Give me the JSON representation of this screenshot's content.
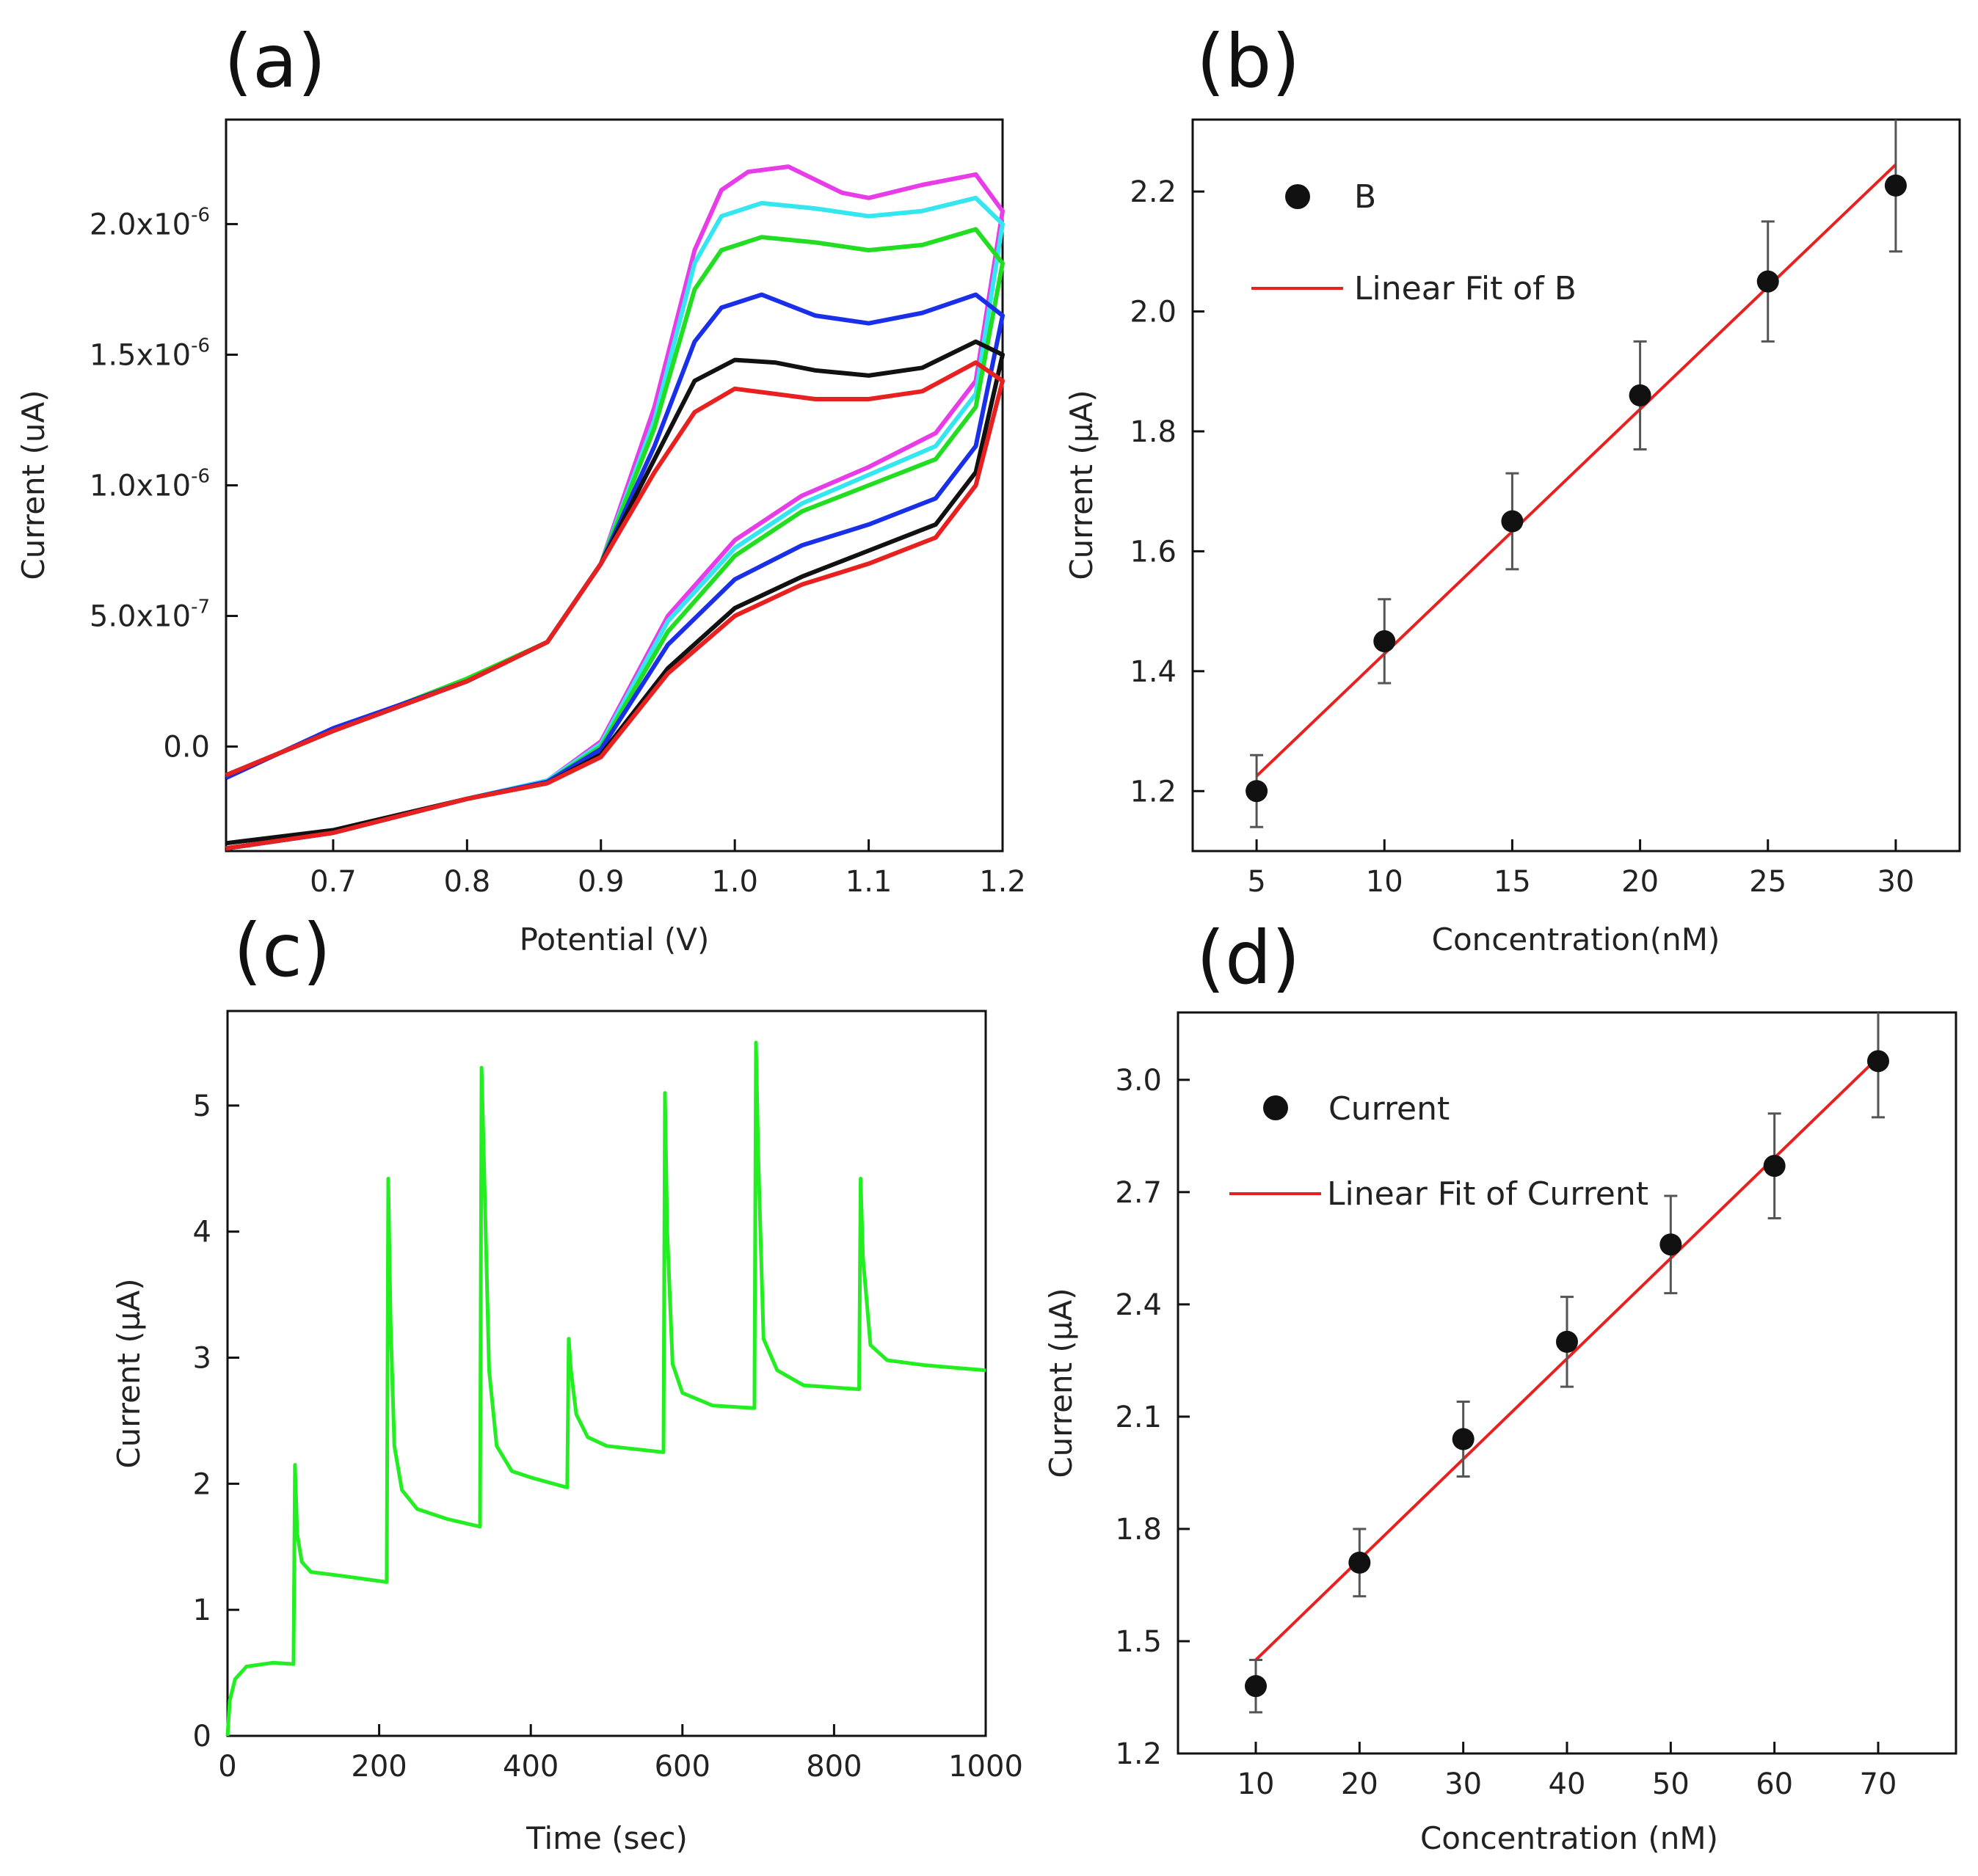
{
  "chart_data": [
    {
      "panel": "(a)",
      "type": "line",
      "xlabel": "Potential (V)",
      "ylabel": "Current (uA)",
      "xlim": [
        0.62,
        1.2
      ],
      "ylim": [
        -4e-07,
        2.4e-06
      ],
      "xticks": [
        0.7,
        0.8,
        0.9,
        1.0,
        1.1,
        1.2
      ],
      "xtick_labels": [
        "0.7",
        "0.8",
        "0.9",
        "1.0",
        "1.1",
        "1.2"
      ],
      "yticks": [
        0,
        5e-07,
        1e-06,
        1.5e-06,
        2e-06
      ],
      "ytick_labels": [
        "0.0",
        "5.0x10",
        "1.0x10",
        "1.5x10",
        "2.0x10"
      ],
      "ytick_exponents": [
        "",
        "-7",
        "-6",
        "-6",
        "-6"
      ],
      "series": [
        {
          "name": "magenta",
          "color": "#e83ce8",
          "forward": [
            [
              0.62,
              -1.1e-07
            ],
            [
              0.7,
              6e-08
            ],
            [
              0.8,
              2.5e-07
            ],
            [
              0.86,
              4e-07
            ],
            [
              0.9,
              7e-07
            ],
            [
              0.94,
              1.3e-06
            ],
            [
              0.97,
              1.9e-06
            ],
            [
              0.99,
              2.13e-06
            ],
            [
              1.01,
              2.2e-06
            ],
            [
              1.04,
              2.22e-06
            ],
            [
              1.08,
              2.12e-06
            ],
            [
              1.1,
              2.1e-06
            ],
            [
              1.14,
              2.15e-06
            ],
            [
              1.18,
              2.19e-06
            ],
            [
              1.2,
              2.05e-06
            ]
          ],
          "reverse": [
            [
              1.2,
              2.05e-06
            ],
            [
              1.18,
              1.4e-06
            ],
            [
              1.15,
              1.2e-06
            ],
            [
              1.1,
              1.07e-06
            ],
            [
              1.05,
              9.6e-07
            ],
            [
              1.0,
              7.9e-07
            ],
            [
              0.95,
              5e-07
            ],
            [
              0.9,
              2e-08
            ],
            [
              0.86,
              -1.3e-07
            ],
            [
              0.8,
              -2e-07
            ],
            [
              0.7,
              -3.3e-07
            ],
            [
              0.62,
              -3.9e-07
            ]
          ]
        },
        {
          "name": "cyan",
          "color": "#33e6f0",
          "forward": [
            [
              0.62,
              -1.1e-07
            ],
            [
              0.7,
              6e-08
            ],
            [
              0.8,
              2.5e-07
            ],
            [
              0.86,
              4e-07
            ],
            [
              0.9,
              7e-07
            ],
            [
              0.94,
              1.25e-06
            ],
            [
              0.97,
              1.85e-06
            ],
            [
              0.99,
              2.03e-06
            ],
            [
              1.02,
              2.08e-06
            ],
            [
              1.06,
              2.06e-06
            ],
            [
              1.1,
              2.03e-06
            ],
            [
              1.14,
              2.05e-06
            ],
            [
              1.18,
              2.1e-06
            ],
            [
              1.2,
              2e-06
            ]
          ],
          "reverse": [
            [
              1.2,
              2e-06
            ],
            [
              1.18,
              1.35e-06
            ],
            [
              1.15,
              1.15e-06
            ],
            [
              1.1,
              1.04e-06
            ],
            [
              1.05,
              9.3e-07
            ],
            [
              1.0,
              7.6e-07
            ],
            [
              0.95,
              4.8e-07
            ],
            [
              0.9,
              1e-08
            ],
            [
              0.86,
              -1.3e-07
            ],
            [
              0.8,
              -2e-07
            ],
            [
              0.7,
              -3.3e-07
            ],
            [
              0.62,
              -3.9e-07
            ]
          ]
        },
        {
          "name": "green",
          "color": "#22dd22",
          "forward": [
            [
              0.62,
              -1.1e-07
            ],
            [
              0.7,
              6e-08
            ],
            [
              0.8,
              2.6e-07
            ],
            [
              0.86,
              4e-07
            ],
            [
              0.9,
              7e-07
            ],
            [
              0.94,
              1.22e-06
            ],
            [
              0.97,
              1.75e-06
            ],
            [
              0.99,
              1.9e-06
            ],
            [
              1.02,
              1.95e-06
            ],
            [
              1.06,
              1.93e-06
            ],
            [
              1.1,
              1.9e-06
            ],
            [
              1.14,
              1.92e-06
            ],
            [
              1.18,
              1.98e-06
            ],
            [
              1.2,
              1.85e-06
            ]
          ],
          "reverse": [
            [
              1.2,
              1.85e-06
            ],
            [
              1.18,
              1.3e-06
            ],
            [
              1.15,
              1.1e-06
            ],
            [
              1.1,
              1e-06
            ],
            [
              1.05,
              9e-07
            ],
            [
              1.0,
              7.3e-07
            ],
            [
              0.95,
              4.4e-07
            ],
            [
              0.9,
              0
            ],
            [
              0.86,
              -1.35e-07
            ],
            [
              0.8,
              -2e-07
            ],
            [
              0.7,
              -3.3e-07
            ],
            [
              0.62,
              -3.9e-07
            ]
          ]
        },
        {
          "name": "blue",
          "color": "#1a30e8",
          "forward": [
            [
              0.62,
              -1.2e-07
            ],
            [
              0.7,
              7e-08
            ],
            [
              0.8,
              2.5e-07
            ],
            [
              0.86,
              4e-07
            ],
            [
              0.9,
              7e-07
            ],
            [
              0.94,
              1.15e-06
            ],
            [
              0.97,
              1.55e-06
            ],
            [
              0.99,
              1.68e-06
            ],
            [
              1.02,
              1.73e-06
            ],
            [
              1.06,
              1.65e-06
            ],
            [
              1.1,
              1.62e-06
            ],
            [
              1.14,
              1.66e-06
            ],
            [
              1.18,
              1.73e-06
            ],
            [
              1.2,
              1.65e-06
            ]
          ],
          "reverse": [
            [
              1.2,
              1.65e-06
            ],
            [
              1.18,
              1.15e-06
            ],
            [
              1.15,
              9.5e-07
            ],
            [
              1.1,
              8.5e-07
            ],
            [
              1.05,
              7.7e-07
            ],
            [
              1.0,
              6.4e-07
            ],
            [
              0.95,
              3.9e-07
            ],
            [
              0.9,
              -1e-08
            ],
            [
              0.86,
              -1.35e-07
            ],
            [
              0.8,
              -2e-07
            ],
            [
              0.7,
              -3.3e-07
            ],
            [
              0.62,
              -3.9e-07
            ]
          ]
        },
        {
          "name": "black",
          "color": "#111111",
          "forward": [
            [
              0.62,
              -1.1e-07
            ],
            [
              0.7,
              6e-08
            ],
            [
              0.8,
              2.5e-07
            ],
            [
              0.86,
              4e-07
            ],
            [
              0.9,
              7e-07
            ],
            [
              0.94,
              1.1e-06
            ],
            [
              0.97,
              1.4e-06
            ],
            [
              1.0,
              1.48e-06
            ],
            [
              1.03,
              1.47e-06
            ],
            [
              1.06,
              1.44e-06
            ],
            [
              1.1,
              1.42e-06
            ],
            [
              1.14,
              1.45e-06
            ],
            [
              1.18,
              1.55e-06
            ],
            [
              1.2,
              1.5e-06
            ]
          ],
          "reverse": [
            [
              1.2,
              1.5e-06
            ],
            [
              1.18,
              1.05e-06
            ],
            [
              1.15,
              8.5e-07
            ],
            [
              1.1,
              7.5e-07
            ],
            [
              1.05,
              6.5e-07
            ],
            [
              1.0,
              5.3e-07
            ],
            [
              0.95,
              3e-07
            ],
            [
              0.9,
              -3e-08
            ],
            [
              0.86,
              -1.4e-07
            ],
            [
              0.8,
              -2e-07
            ],
            [
              0.7,
              -3.2e-07
            ],
            [
              0.62,
              -3.7e-07
            ]
          ]
        },
        {
          "name": "red",
          "color": "#e82020",
          "forward": [
            [
              0.62,
              -1.1e-07
            ],
            [
              0.7,
              6e-08
            ],
            [
              0.8,
              2.5e-07
            ],
            [
              0.86,
              4e-07
            ],
            [
              0.9,
              7e-07
            ],
            [
              0.94,
              1.05e-06
            ],
            [
              0.97,
              1.28e-06
            ],
            [
              1.0,
              1.37e-06
            ],
            [
              1.03,
              1.35e-06
            ],
            [
              1.06,
              1.33e-06
            ],
            [
              1.1,
              1.33e-06
            ],
            [
              1.14,
              1.36e-06
            ],
            [
              1.18,
              1.47e-06
            ],
            [
              1.2,
              1.4e-06
            ]
          ],
          "reverse": [
            [
              1.2,
              1.4e-06
            ],
            [
              1.18,
              1e-06
            ],
            [
              1.15,
              8e-07
            ],
            [
              1.1,
              7e-07
            ],
            [
              1.05,
              6.2e-07
            ],
            [
              1.0,
              5e-07
            ],
            [
              0.95,
              2.8e-07
            ],
            [
              0.9,
              -4e-08
            ],
            [
              0.86,
              -1.4e-07
            ],
            [
              0.8,
              -2e-07
            ],
            [
              0.7,
              -3.3e-07
            ],
            [
              0.62,
              -3.9e-07
            ]
          ]
        }
      ]
    },
    {
      "panel": "(b)",
      "type": "scatter",
      "xlabel": "Concentration(nM)",
      "ylabel": "Current (µA)",
      "xlim": [
        2.5,
        32.5
      ],
      "ylim": [
        1.1,
        2.32
      ],
      "xticks": [
        5,
        10,
        15,
        20,
        25,
        30
      ],
      "yticks": [
        1.2,
        1.4,
        1.6,
        1.8,
        2.0,
        2.2
      ],
      "x": [
        5,
        10,
        15,
        20,
        25,
        30
      ],
      "y": [
        1.2,
        1.45,
        1.65,
        1.86,
        2.05,
        2.21
      ],
      "err": [
        0.06,
        0.07,
        0.08,
        0.09,
        0.1,
        0.11
      ],
      "fit": {
        "x": [
          5,
          30
        ],
        "y": [
          1.225,
          2.245
        ]
      },
      "legend": {
        "points": "B",
        "fit": "Linear Fit of B"
      }
    },
    {
      "panel": "(c)",
      "type": "line",
      "xlabel": "Time (sec)",
      "ylabel": "Current (µA)",
      "xlim": [
        0,
        1000
      ],
      "ylim": [
        0,
        5.75
      ],
      "xticks": [
        0,
        200,
        400,
        600,
        800,
        1000
      ],
      "yticks": [
        0,
        1,
        2,
        3,
        4,
        5
      ],
      "color": "#22ee22",
      "series": [
        {
          "name": "amperometric response",
          "points": [
            [
              0,
              0
            ],
            [
              3,
              0.28
            ],
            [
              10,
              0.45
            ],
            [
              25,
              0.55
            ],
            [
              60,
              0.58
            ],
            [
              87,
              0.57
            ],
            [
              89,
              2.15
            ],
            [
              92,
              1.6
            ],
            [
              98,
              1.38
            ],
            [
              110,
              1.3
            ],
            [
              150,
              1.27
            ],
            [
              210,
              1.22
            ],
            [
              212,
              4.42
            ],
            [
              215,
              3.3
            ],
            [
              220,
              2.3
            ],
            [
              230,
              1.95
            ],
            [
              250,
              1.8
            ],
            [
              290,
              1.72
            ],
            [
              333,
              1.66
            ],
            [
              335,
              5.3
            ],
            [
              338,
              4.6
            ],
            [
              345,
              2.9
            ],
            [
              355,
              2.3
            ],
            [
              375,
              2.1
            ],
            [
              400,
              2.05
            ],
            [
              448,
              1.97
            ],
            [
              450,
              3.15
            ],
            [
              453,
              2.9
            ],
            [
              460,
              2.55
            ],
            [
              475,
              2.37
            ],
            [
              500,
              2.3
            ],
            [
              575,
              2.25
            ],
            [
              577,
              5.1
            ],
            [
              580,
              4
            ],
            [
              587,
              2.95
            ],
            [
              600,
              2.72
            ],
            [
              640,
              2.62
            ],
            [
              695,
              2.6
            ],
            [
              697,
              5.5
            ],
            [
              700,
              4.6
            ],
            [
              707,
              3.15
            ],
            [
              725,
              2.9
            ],
            [
              760,
              2.78
            ],
            [
              833,
              2.75
            ],
            [
              835,
              4.42
            ],
            [
              838,
              3.8
            ],
            [
              848,
              3.1
            ],
            [
              870,
              2.98
            ],
            [
              920,
              2.94
            ],
            [
              1000,
              2.9
            ]
          ]
        }
      ]
    },
    {
      "panel": "(d)",
      "type": "scatter",
      "xlabel": "Concentration (nM)",
      "ylabel": "Current (µA)",
      "xlim": [
        2.5,
        77.5
      ],
      "ylim": [
        1.2,
        3.18
      ],
      "xticks": [
        10,
        20,
        30,
        40,
        50,
        60,
        70
      ],
      "yticks": [
        1.2,
        1.5,
        1.8,
        2.1,
        2.4,
        2.7,
        3.0
      ],
      "x": [
        10,
        20,
        30,
        40,
        50,
        60,
        70
      ],
      "y": [
        1.38,
        1.71,
        2.04,
        2.3,
        2.56,
        2.77,
        3.05
      ],
      "err": [
        0.07,
        0.09,
        0.1,
        0.12,
        0.13,
        0.14,
        0.15
      ],
      "fit": {
        "x": [
          10,
          70
        ],
        "y": [
          1.45,
          3.06
        ]
      },
      "legend": {
        "points": "Current",
        "fit": "Linear Fit of Current"
      }
    }
  ]
}
